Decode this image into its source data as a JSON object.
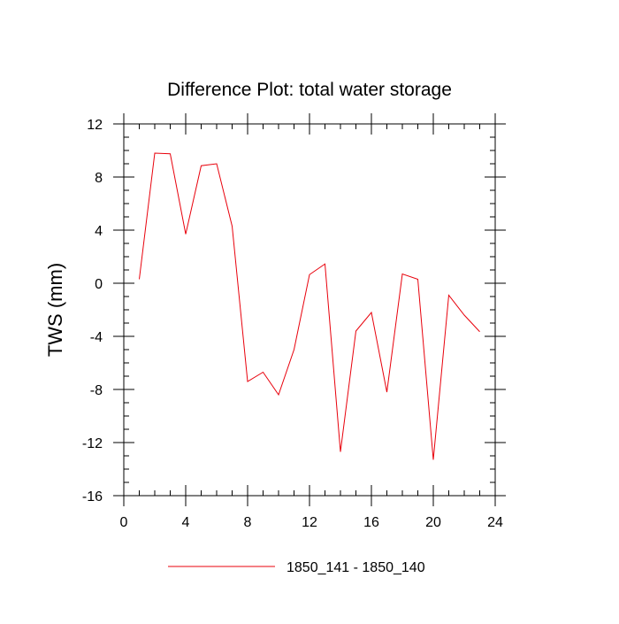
{
  "chart_data": {
    "type": "line",
    "title": "Difference Plot: total water storage",
    "xlabel": "",
    "ylabel": "TWS  (mm)",
    "xlim": [
      0,
      24
    ],
    "ylim": [
      -16,
      12
    ],
    "xticks": [
      0,
      4,
      8,
      12,
      16,
      20,
      24
    ],
    "yticks": [
      -16,
      -12,
      -8,
      -4,
      0,
      4,
      8,
      12
    ],
    "x_minor_step": 1,
    "y_minor_step": 1,
    "grid": false,
    "legend_position": "bottom-center",
    "series": [
      {
        "name": "1850_141 - 1850_140",
        "color": "#e8000b",
        "x": [
          1,
          2,
          3,
          4,
          5,
          6,
          7,
          8,
          9,
          10,
          11,
          12,
          13,
          14,
          15,
          16,
          17,
          18,
          19,
          20,
          21,
          22,
          23
        ],
        "values": [
          0.3,
          9.8,
          9.75,
          3.7,
          8.85,
          9.0,
          4.3,
          -7.4,
          -6.7,
          -8.4,
          -5.0,
          0.65,
          1.45,
          -12.7,
          -3.6,
          -2.2,
          -8.2,
          0.7,
          0.3,
          -13.3,
          -0.9,
          -2.4,
          -3.65
        ]
      }
    ]
  }
}
